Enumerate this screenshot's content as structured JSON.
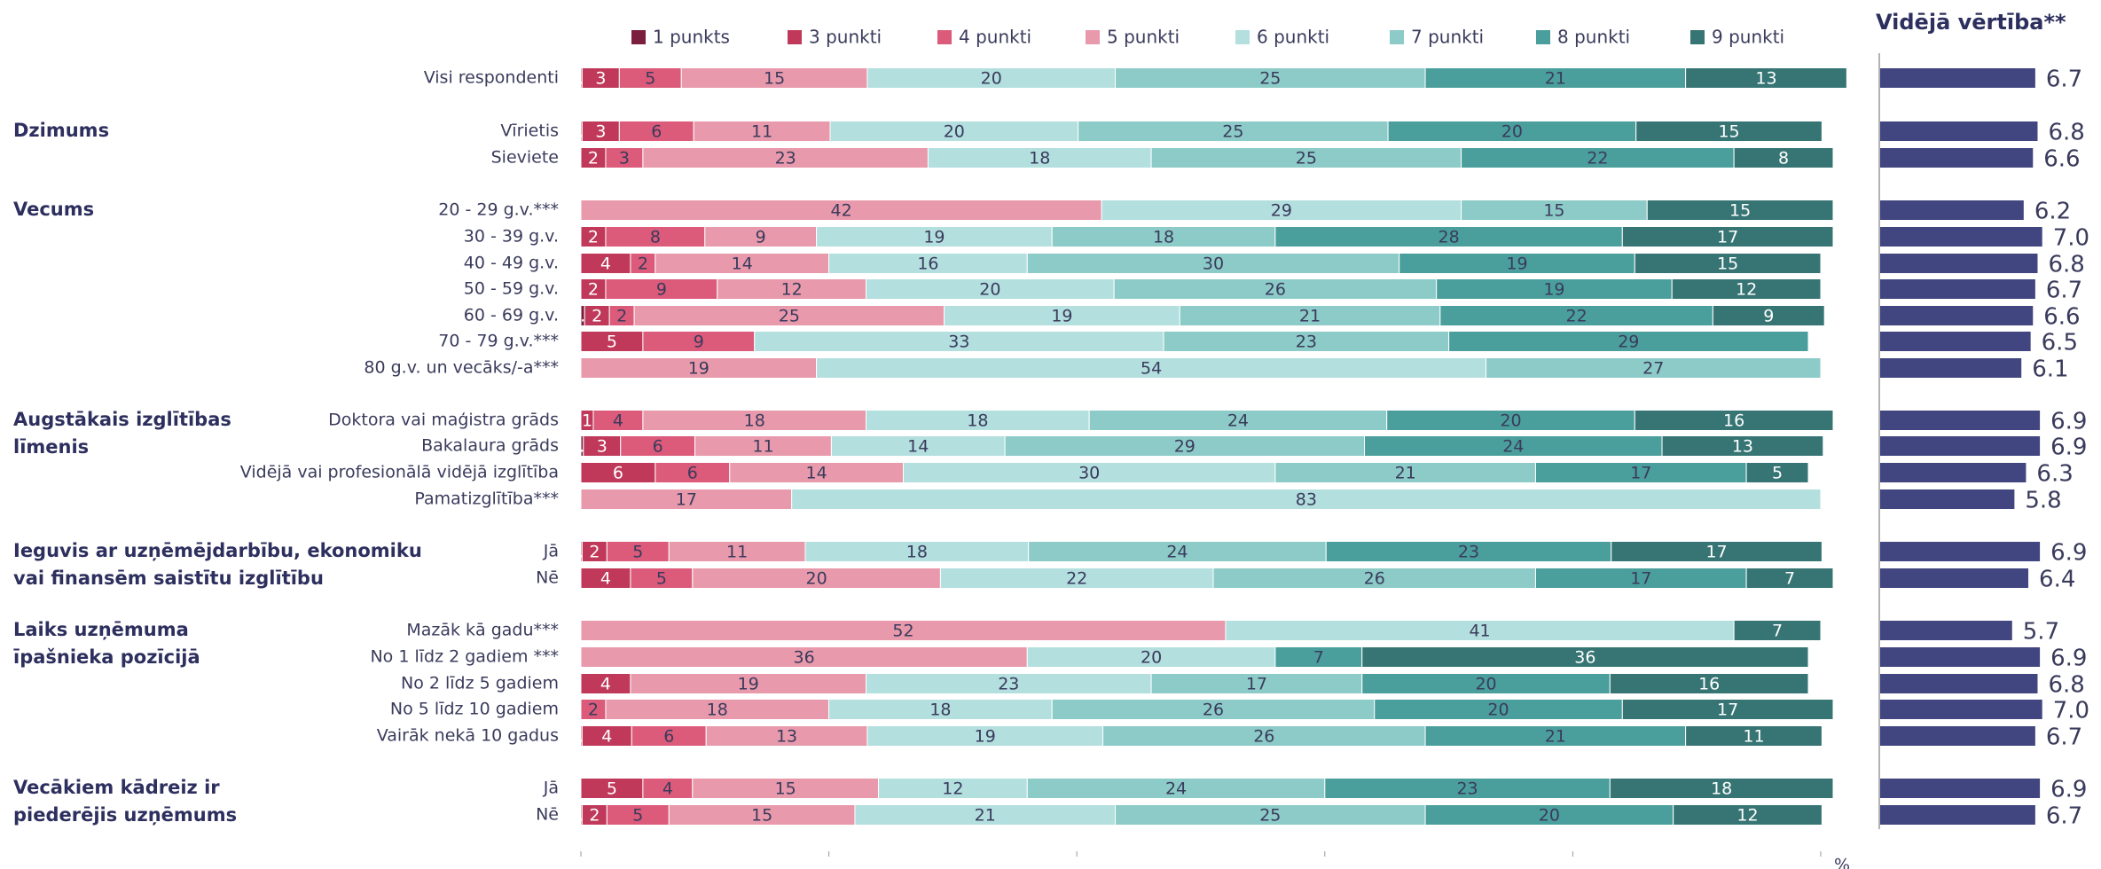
{
  "chart_data": {
    "type": "stacked_bar_h",
    "series": [
      {
        "name": "1 punkts",
        "color": "#7a1f3d",
        "values": [
          0.1,
          0.1,
          null,
          null,
          null,
          null,
          null,
          0.3,
          null,
          null,
          null,
          0.2,
          null,
          null,
          0.1,
          null,
          null,
          null,
          null,
          null,
          0.1,
          null,
          0.1
        ]
      },
      {
        "name": "3 punkti",
        "color": "#c0395a",
        "values": [
          3,
          3,
          2,
          null,
          2,
          4,
          2,
          2,
          5,
          null,
          1,
          3,
          6,
          null,
          2,
          4,
          null,
          null,
          4,
          null,
          4,
          5,
          2
        ]
      },
      {
        "name": "4 punkti",
        "color": "#dc5a7a",
        "values": [
          5,
          6,
          3,
          null,
          8,
          2,
          9,
          2,
          9,
          null,
          4,
          6,
          6,
          null,
          5,
          5,
          null,
          null,
          null,
          2,
          6,
          4,
          5
        ]
      },
      {
        "name": "5 punkti",
        "color": "#e899ab",
        "values": [
          15,
          11,
          23,
          42,
          9,
          14,
          12,
          25,
          null,
          19,
          18,
          11,
          14,
          17,
          11,
          20,
          52,
          36,
          19,
          18,
          13,
          15,
          15
        ]
      },
      {
        "name": "6 punkti",
        "color": "#b3dfdf",
        "values": [
          20,
          20,
          18,
          29,
          19,
          16,
          20,
          19,
          33,
          54,
          18,
          14,
          30,
          83,
          18,
          22,
          41,
          20,
          23,
          18,
          19,
          12,
          21
        ]
      },
      {
        "name": "7 punkti",
        "color": "#8ccbc7",
        "values": [
          25,
          25,
          25,
          15,
          18,
          30,
          26,
          21,
          23,
          27,
          24,
          29,
          21,
          null,
          24,
          26,
          null,
          null,
          17,
          26,
          26,
          24,
          25
        ]
      },
      {
        "name": "8 punkti",
        "color": "#4a9f9c",
        "values": [
          21,
          20,
          22,
          null,
          28,
          19,
          19,
          22,
          29,
          null,
          20,
          24,
          17,
          null,
          23,
          17,
          null,
          7,
          20,
          20,
          21,
          23,
          20
        ]
      },
      {
        "name": "9 punkti",
        "color": "#367574",
        "values": [
          13,
          15,
          8,
          15,
          17,
          15,
          12,
          9,
          null,
          null,
          16,
          13,
          5,
          null,
          17,
          7,
          7,
          36,
          16,
          17,
          11,
          18,
          12
        ]
      }
    ],
    "categories": [
      "Visi respondenti",
      "Vīrietis",
      "Sieviete",
      "20 - 29 g.v.***",
      "30 - 39 g.v.",
      "40 - 49 g.v.",
      "50 - 59 g.v.",
      "60 - 69 g.v.",
      "70 - 79 g.v.***",
      "80 g.v. un vecāks/-a***",
      "Doktora vai maģistra grāds",
      "Bakalaura grāds",
      "Vidējā vai profesionālā vidējā izglītība",
      "Pamatizglītība***",
      "Jā",
      "Nē",
      "Mazāk kā gadu***",
      "No 1 līdz 2 gadiem ***",
      "No 2 līdz 5 gadiem",
      "No 5 līdz 10 gadiem",
      "Vairāk nekā 10 gadus",
      "Jā",
      "Nē"
    ],
    "groups": [
      [
        "Dzimums"
      ],
      [
        "Vecums"
      ],
      [
        "Augstākais izglītības",
        "līmenis"
      ],
      [
        "Ieguvis ar uzņēmējdarbību, ekonomiku",
        "vai finansēm saistītu izglītību"
      ],
      [
        "Laiks uzņēmuma",
        "īpašnieka pozīcijā"
      ],
      [
        "Vecākiem kādreiz ir",
        "piederējis uzņēmums"
      ]
    ],
    "xlim": [
      0,
      100
    ],
    "xticks": [
      0,
      20,
      40,
      60,
      80,
      100
    ],
    "x_unit": "%",
    "mean_title": "Vidējā vērtība**",
    "mean_color": "#414580",
    "mean_xlim": [
      0,
      10
    ],
    "mean_values": [
      6.7,
      6.8,
      6.6,
      6.2,
      7,
      6.8,
      6.7,
      6.6,
      6.5,
      6.1,
      6.9,
      6.9,
      6.3,
      5.8,
      6.9,
      6.4,
      5.7,
      6.9,
      6.8,
      7,
      6.7,
      6.9,
      6.7
    ],
    "mean_value_labels": [
      "6.7",
      "6.8",
      "6.6",
      "6.2",
      "7.0",
      "6.8",
      "6.7",
      "6.6",
      "6.5",
      "6.1",
      "6.9",
      "6.9",
      "6.3",
      "5.8",
      "6.9",
      "6.4",
      "5.7",
      "6.9",
      "6.8",
      "7.0",
      "6.7",
      "6.9",
      "6.7"
    ]
  }
}
